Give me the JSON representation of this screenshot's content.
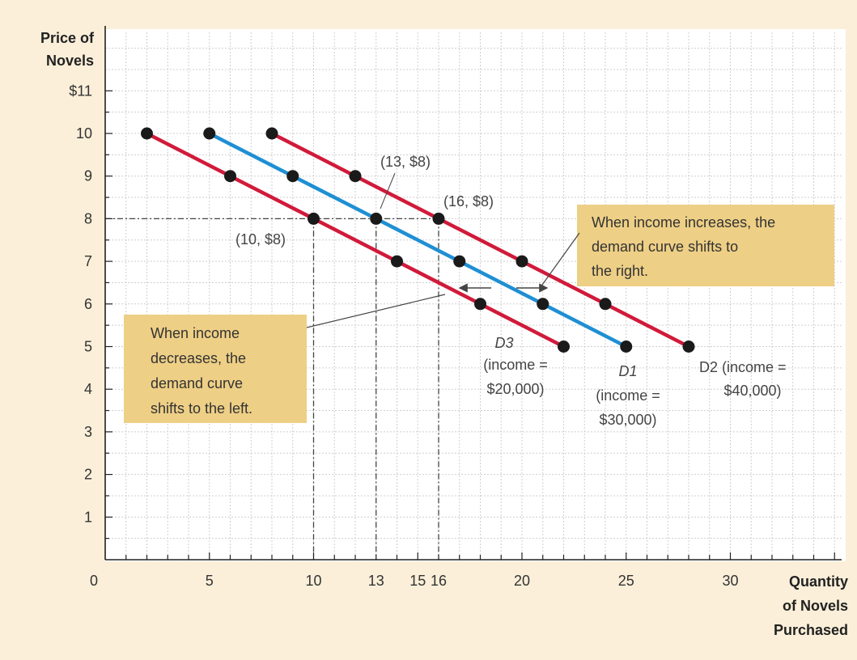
{
  "chart_data": {
    "type": "line",
    "title": "",
    "ylabel": [
      "Price of",
      "Novels"
    ],
    "y_top_label": "$11",
    "xlabel": [
      "Quantity",
      "of Novels",
      "Purchased"
    ],
    "xlim": [
      0,
      35
    ],
    "ylim": [
      0,
      12
    ],
    "grid": true,
    "y_ticks": [
      1,
      2,
      3,
      4,
      5,
      6,
      7,
      8,
      9,
      10
    ],
    "x_ticks": [
      "0",
      "5",
      "10",
      "13",
      "15",
      "16",
      "20",
      "25",
      "30"
    ],
    "x_tick_values": [
      0,
      5,
      10,
      13,
      15,
      16,
      20,
      25,
      30
    ],
    "series": [
      {
        "label_lines": [
          "D3",
          "(income =",
          "$20,000)"
        ],
        "color": "#d11a3a",
        "points": [
          [
            2,
            10
          ],
          [
            6,
            9
          ],
          [
            10,
            8
          ],
          [
            14,
            7
          ],
          [
            18,
            6
          ],
          [
            22,
            5
          ]
        ]
      },
      {
        "label_lines": [
          "D1",
          "(income =",
          "$30,000)"
        ],
        "color": "#1f8fd4",
        "points": [
          [
            5,
            10
          ],
          [
            9,
            9
          ],
          [
            13,
            8
          ],
          [
            17,
            7
          ],
          [
            21,
            6
          ],
          [
            25,
            5
          ]
        ]
      },
      {
        "label_lines": [
          "D2 (income =",
          "$40,000)"
        ],
        "color": "#d11a3a",
        "points": [
          [
            8,
            10
          ],
          [
            12,
            9
          ],
          [
            16,
            8
          ],
          [
            20,
            7
          ],
          [
            24,
            6
          ],
          [
            28,
            5
          ]
        ]
      }
    ],
    "point_labels": [
      "(10, $8)",
      "(13, $8)",
      "(16, $8)"
    ],
    "annotations": {
      "increase": [
        "When income increases, the",
        "demand curve shifts to",
        "the right."
      ],
      "decrease": [
        "When income",
        "decreases, the",
        "demand curve",
        "shifts to the left."
      ]
    }
  },
  "colors": {
    "background": "#fbefd9",
    "plot_bg": "#ffffff",
    "box_fill": "#eecf86",
    "dot": "#1a1a1a"
  }
}
